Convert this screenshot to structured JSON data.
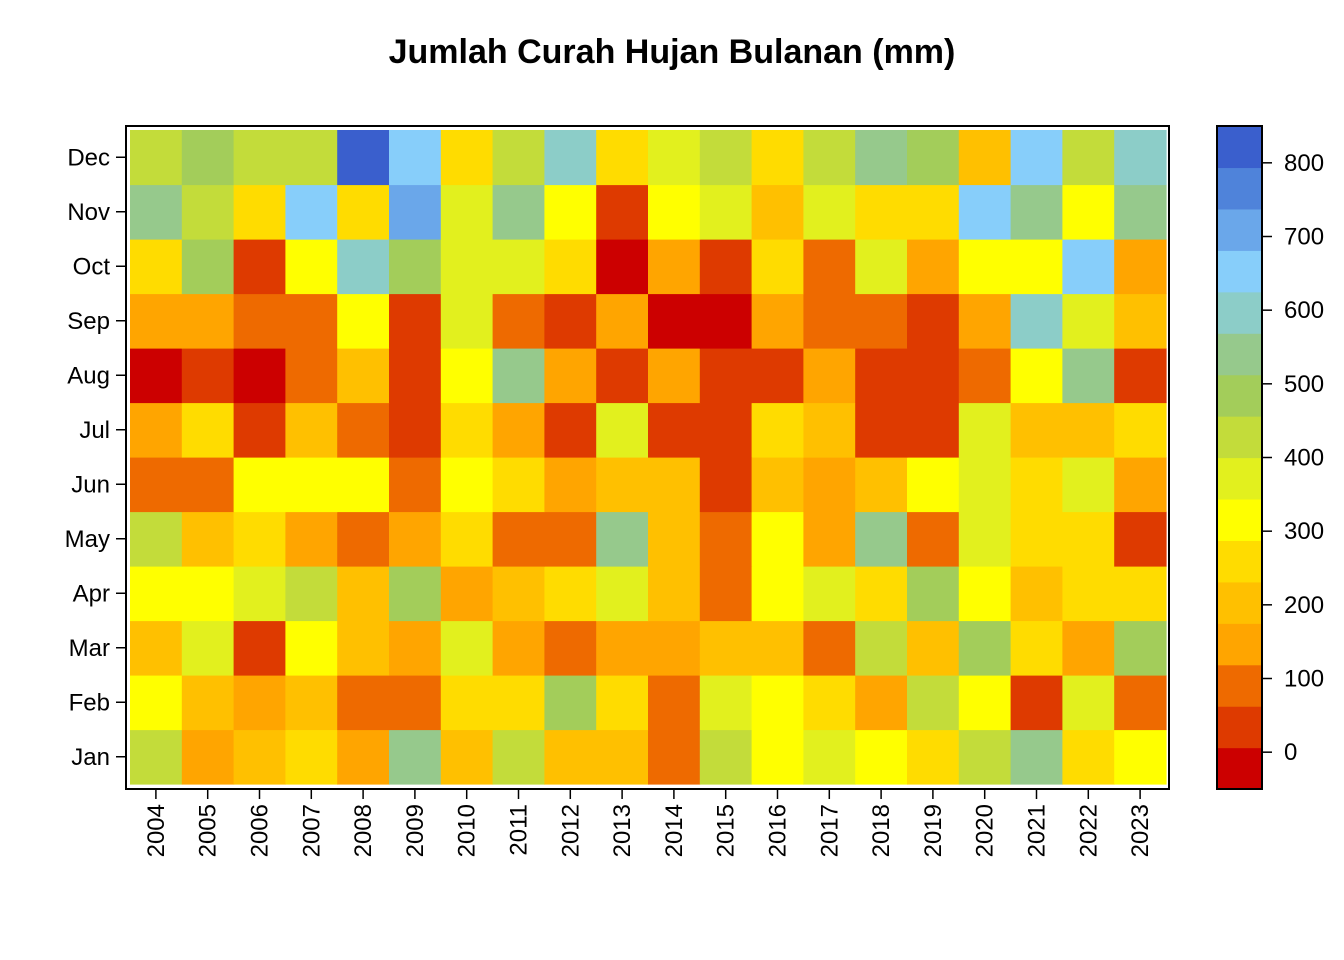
{
  "chart_data": {
    "type": "heatmap",
    "title": "Jumlah Curah Hujan Bulanan (mm)",
    "xlabel": "",
    "ylabel": "",
    "x": [
      "2004",
      "2005",
      "2006",
      "2007",
      "2008",
      "2009",
      "2010",
      "2011",
      "2012",
      "2013",
      "2014",
      "2015",
      "2016",
      "2017",
      "2018",
      "2019",
      "2020",
      "2021",
      "2022",
      "2023"
    ],
    "y": [
      "Jan",
      "Feb",
      "Mar",
      "Apr",
      "May",
      "Jun",
      "Jul",
      "Aug",
      "Sep",
      "Oct",
      "Nov",
      "Dec"
    ],
    "values": [
      [
        425,
        150,
        200,
        250,
        150,
        525,
        200,
        425,
        200,
        200,
        100,
        425,
        325,
        375,
        325,
        250,
        425,
        525,
        250,
        325
      ],
      [
        325,
        200,
        150,
        200,
        100,
        100,
        275,
        275,
        475,
        275,
        100,
        375,
        325,
        275,
        150,
        425,
        325,
        50,
        375,
        100
      ],
      [
        200,
        375,
        50,
        325,
        200,
        150,
        375,
        150,
        100,
        150,
        150,
        225,
        225,
        100,
        425,
        200,
        475,
        250,
        150,
        475
      ],
      [
        325,
        325,
        375,
        425,
        200,
        475,
        150,
        200,
        250,
        375,
        200,
        100,
        325,
        375,
        250,
        475,
        325,
        200,
        275,
        275
      ],
      [
        425,
        200,
        250,
        150,
        100,
        150,
        250,
        100,
        100,
        525,
        200,
        100,
        325,
        150,
        525,
        100,
        375,
        275,
        275,
        50
      ],
      [
        100,
        100,
        325,
        325,
        325,
        100,
        325,
        250,
        150,
        225,
        225,
        50,
        200,
        150,
        200,
        325,
        375,
        250,
        375,
        150
      ],
      [
        150,
        250,
        50,
        200,
        100,
        50,
        250,
        150,
        50,
        375,
        50,
        50,
        250,
        200,
        50,
        50,
        375,
        200,
        200,
        250
      ],
      [
        0,
        50,
        0,
        100,
        200,
        50,
        325,
        525,
        150,
        50,
        150,
        50,
        50,
        150,
        50,
        50,
        100,
        325,
        525,
        50
      ],
      [
        150,
        150,
        100,
        100,
        325,
        50,
        375,
        100,
        50,
        150,
        0,
        0,
        150,
        100,
        100,
        50,
        150,
        575,
        375,
        200
      ],
      [
        250,
        475,
        50,
        325,
        575,
        475,
        375,
        375,
        250,
        0,
        150,
        50,
        250,
        100,
        375,
        150,
        325,
        325,
        675,
        150
      ],
      [
        525,
        425,
        250,
        675,
        275,
        725,
        375,
        525,
        325,
        50,
        325,
        375,
        200,
        375,
        275,
        275,
        625,
        525,
        325,
        525
      ],
      [
        425,
        475,
        425,
        425,
        825,
        625,
        250,
        425,
        575,
        250,
        375,
        425,
        250,
        425,
        525,
        475,
        200,
        675,
        425,
        575
      ]
    ],
    "colorbar": {
      "ticks": [
        0,
        100,
        200,
        300,
        400,
        500,
        600,
        700,
        800
      ],
      "range": [
        -50,
        850
      ],
      "colors": [
        "#CC0000",
        "#DE3A00",
        "#EE6A00",
        "#FFA500",
        "#FFC000",
        "#FFDC00",
        "#FFFF00",
        "#E2F01E",
        "#C3DC3A",
        "#A3CD5A",
        "#96C98C",
        "#8CCDC8",
        "#87CEFA",
        "#6AA7EA",
        "#4F83DA",
        "#3A5FCD"
      ]
    },
    "grid": false,
    "legend": "colorbar-right"
  }
}
